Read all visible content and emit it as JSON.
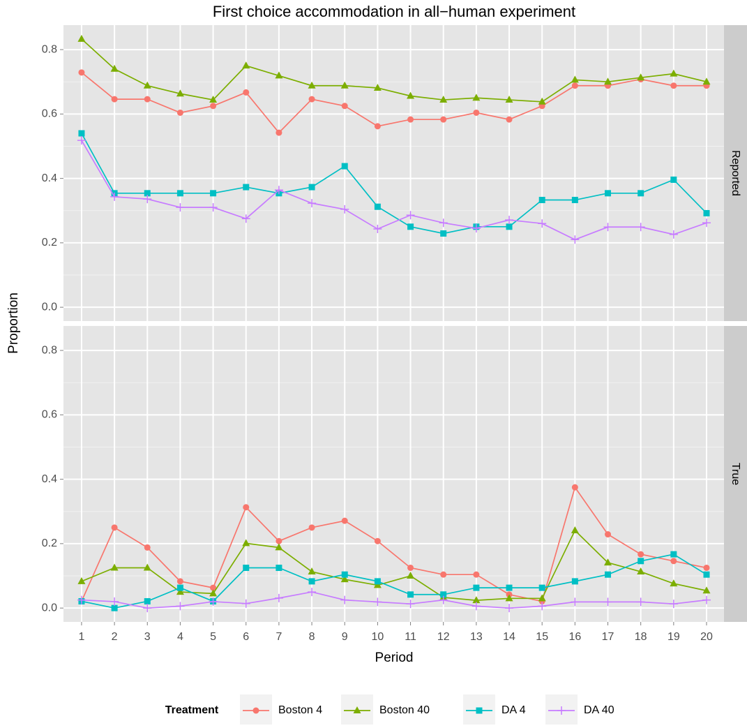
{
  "chart_data": {
    "type": "line",
    "title": "First choice accommodation in all−human experiment",
    "x_label": "Period",
    "y_label": "Proportion",
    "legend_title": "Treatment",
    "legend_position": "bottom",
    "facets": [
      "Reported",
      "True"
    ],
    "x": [
      1,
      2,
      3,
      4,
      5,
      6,
      7,
      8,
      9,
      10,
      11,
      12,
      13,
      14,
      15,
      16,
      17,
      18,
      19,
      20
    ],
    "xlim": [
      0.45,
      20.53
    ],
    "xticks": [
      1,
      2,
      3,
      4,
      5,
      6,
      7,
      8,
      9,
      10,
      11,
      12,
      13,
      14,
      15,
      16,
      17,
      18,
      19,
      20
    ],
    "ylim": [
      -0.043,
      0.876
    ],
    "yticks": [
      {
        "value": 0,
        "label": "0.0"
      },
      {
        "value": 0.2,
        "label": "0.2"
      },
      {
        "value": 0.4,
        "label": "0.4"
      },
      {
        "value": 0.6,
        "label": "0.6"
      },
      {
        "value": 0.8,
        "label": "0.8"
      }
    ],
    "grid": true,
    "series": [
      {
        "name": "Boston 4",
        "color": "#f8766d",
        "marker": "circle",
        "values": [
          [
            0.729,
            0.646,
            0.646,
            0.604,
            0.625,
            0.667,
            0.542,
            0.646,
            0.625,
            0.562,
            0.583,
            0.583,
            0.604,
            0.583,
            0.625,
            0.688,
            0.688,
            0.708,
            0.688,
            0.688
          ],
          [
            0.021,
            0.25,
            0.188,
            0.083,
            0.063,
            0.313,
            0.208,
            0.25,
            0.271,
            0.208,
            0.125,
            0.104,
            0.104,
            0.042,
            0.021,
            0.375,
            0.229,
            0.167,
            0.146,
            0.125
          ]
        ]
      },
      {
        "name": "Boston 40",
        "color": "#7cae00",
        "marker": "triangle",
        "values": [
          [
            0.833,
            0.74,
            0.688,
            0.663,
            0.644,
            0.75,
            0.719,
            0.688,
            0.688,
            0.681,
            0.656,
            0.644,
            0.65,
            0.644,
            0.638,
            0.706,
            0.7,
            0.713,
            0.725,
            0.7
          ],
          [
            0.083,
            0.125,
            0.125,
            0.05,
            0.045,
            0.201,
            0.188,
            0.113,
            0.089,
            0.071,
            0.1,
            0.033,
            0.024,
            0.03,
            0.03,
            0.241,
            0.141,
            0.113,
            0.076,
            0.054
          ]
        ]
      },
      {
        "name": "DA 4",
        "color": "#00bfc4",
        "marker": "square",
        "values": [
          [
            0.54,
            0.354,
            0.354,
            0.354,
            0.354,
            0.373,
            0.354,
            0.373,
            0.438,
            0.312,
            0.25,
            0.229,
            0.25,
            0.25,
            0.333,
            0.333,
            0.354,
            0.354,
            0.396,
            0.292
          ],
          [
            0.021,
            0,
            0.021,
            0.063,
            0.021,
            0.125,
            0.125,
            0.083,
            0.104,
            0.083,
            0.042,
            0.042,
            0.063,
            0.063,
            0.063,
            0.083,
            0.104,
            0.146,
            0.167,
            0.104
          ]
        ]
      },
      {
        "name": "DA 40",
        "color": "#c77cff",
        "marker": "plus",
        "values": [
          [
            0.518,
            0.343,
            0.336,
            0.31,
            0.31,
            0.275,
            0.364,
            0.323,
            0.304,
            0.243,
            0.286,
            0.262,
            0.245,
            0.271,
            0.26,
            0.21,
            0.249,
            0.249,
            0.226,
            0.262
          ],
          [
            0.025,
            0.02,
            0,
            0.006,
            0.02,
            0.014,
            0.031,
            0.05,
            0.025,
            0.019,
            0.013,
            0.025,
            0.006,
            0,
            0.006,
            0.019,
            0.019,
            0.019,
            0.013,
            0.025
          ]
        ]
      }
    ]
  }
}
